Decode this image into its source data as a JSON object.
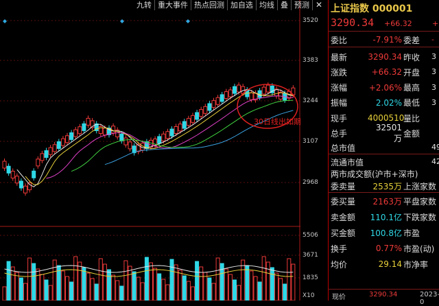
{
  "toolbar": {
    "items": [
      "九转",
      "重大事件",
      "热点回测",
      "加自选",
      "均线",
      "叠",
      "预测"
    ],
    "close": "✕"
  },
  "chart": {
    "price_ticks": [
      "3520",
      "3383",
      "3244",
      "3107",
      "2968"
    ],
    "volume_ticks": [
      "5506",
      "3671",
      "1835",
      "X10"
    ],
    "annotation": "30日线出如期反弹"
  },
  "panel": {
    "title": "上证指数 000001",
    "price": "3290.34",
    "change": "+66.32",
    "change_pct": "+",
    "rows": [
      {
        "label": "委比",
        "value": "-7.91%",
        "label2": "委差",
        "right": "-",
        "color": "red"
      },
      {
        "label": "最新",
        "value": "3290.34",
        "label2": "昨收",
        "right": "3",
        "color": "red"
      },
      {
        "label": "涨跌",
        "value": "+66.32",
        "label2": "开盘",
        "right": "3",
        "color": "red"
      },
      {
        "label": "涨幅",
        "value": "+2.06%",
        "label2": "最高",
        "right": "3",
        "color": "red"
      },
      {
        "label": "振幅",
        "value": "2.02%",
        "label2": "最低",
        "right": "3",
        "color": "cyan"
      },
      {
        "label": "现手",
        "value": "4000510",
        "label2": "量比",
        "right": "",
        "color": "yellow"
      },
      {
        "label": "总手",
        "value": "32501万",
        "label2": "金额",
        "right": "",
        "color": "white"
      },
      {
        "label": "总市值",
        "value": "",
        "label2": "",
        "right": "49",
        "color": "white"
      },
      {
        "label": "流通市值",
        "value": "",
        "label2": "",
        "right": "42",
        "color": "white"
      },
      {
        "label": "两市成交额(沪市+深市)",
        "value": "",
        "label2": "",
        "right": "",
        "color": "white"
      },
      {
        "label": "委卖量",
        "value": "2535万",
        "label2": "上涨家数",
        "right": "",
        "color": "yellow"
      },
      {
        "label": "委买量",
        "value": "2163万",
        "label2": "平盘家数",
        "right": "",
        "color": "red"
      },
      {
        "label": "卖金额",
        "value": "110.1亿",
        "label2": "下跌家数",
        "right": "",
        "color": "cyan"
      },
      {
        "label": "买金额",
        "value": "100.8亿",
        "label2": "市盈",
        "right": "",
        "color": "cyan"
      },
      {
        "label": "换手",
        "value": "0.77%",
        "label2": "市盈(动)",
        "right": "",
        "color": "red"
      },
      {
        "label": "均价",
        "value": "29.14",
        "label2": "市净率",
        "right": "",
        "color": "yellow"
      }
    ],
    "status_left": "现价",
    "status_mid": "3290.34",
    "status_right": "2023-0"
  },
  "colors": {
    "up": "#f03a3a",
    "down": "#2fd8e6",
    "ma5": "#e6e6e6",
    "ma10": "#e8d03a",
    "ma20": "#e040c8",
    "ma30": "#40d040",
    "ma60": "#3aa0e0"
  }
}
